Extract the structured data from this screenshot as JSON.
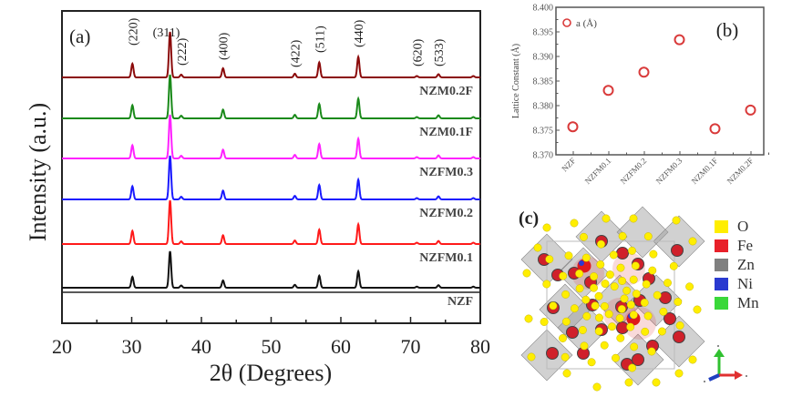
{
  "chart_data": [
    {
      "panel": "(a)",
      "type": "line",
      "title": "",
      "xlabel": "2θ (Degrees)",
      "ylabel": "Intensity (a.u.)",
      "xlim": [
        20,
        80
      ],
      "xticks": [
        20,
        30,
        40,
        50,
        60,
        70,
        80
      ],
      "grid": false,
      "peak_labels": [
        {
          "hkl": "(220)",
          "x": 30.1
        },
        {
          "hkl": "(311)",
          "x": 35.5
        },
        {
          "hkl": "(222)",
          "x": 37.1
        },
        {
          "hkl": "(400)",
          "x": 43.1
        },
        {
          "hkl": "(422)",
          "x": 53.4
        },
        {
          "hkl": "(511)",
          "x": 56.9
        },
        {
          "hkl": "(440)",
          "x": 62.5
        },
        {
          "hkl": "(620)",
          "x": 70.9
        },
        {
          "hkl": "(533)",
          "x": 74.0
        }
      ],
      "peaks_2theta": [
        30.1,
        35.5,
        37.1,
        43.1,
        53.4,
        56.9,
        62.5,
        70.9,
        74.0,
        79.0
      ],
      "relative_intensity": [
        0.3,
        1.0,
        0.06,
        0.2,
        0.08,
        0.33,
        0.45,
        0.03,
        0.07,
        0.03
      ],
      "series": [
        {
          "name": "NZM0.2F",
          "color": "#8b0a0a",
          "offset_rank": 5
        },
        {
          "name": "NZM0.1F",
          "color": "#1a8a1a",
          "offset_rank": 4
        },
        {
          "name": "NZFM0.3",
          "color": "#ff22ff",
          "offset_rank": 3
        },
        {
          "name": "NZFM0.2",
          "color": "#1a1aff",
          "offset_rank": 2
        },
        {
          "name": "NZFM0.1",
          "color": "#ff1a1a",
          "offset_rank": 1
        },
        {
          "name": "NZF",
          "color": "#111111",
          "offset_rank": 0
        }
      ]
    },
    {
      "panel": "(b)",
      "type": "scatter",
      "title": "",
      "xlabel": "",
      "ylabel": "Lattice Constant (Å)",
      "categories": [
        "NZF",
        "NZFM0.1",
        "NZFM0.2",
        "NZFM0.3",
        "NZM0.1F",
        "NZM0.2F"
      ],
      "series": [
        {
          "name": "a (Å)",
          "color": "#d93a3a",
          "values": [
            8.3757,
            8.3831,
            8.3868,
            8.3934,
            8.3753,
            8.3791
          ]
        }
      ],
      "ylim": [
        8.37,
        8.4
      ],
      "yticks": [
        "8.370",
        "8.375",
        "8.380",
        "8.385",
        "8.390",
        "8.395",
        "8.400"
      ],
      "legend_position": "top-left",
      "grid": false
    }
  ],
  "panel_c": {
    "label": "(c)",
    "description": "spinel crystal structure",
    "legend": [
      {
        "element": "O",
        "color": "#ffee00"
      },
      {
        "element": "Fe",
        "color": "#e8202a"
      },
      {
        "element": "Zn",
        "color": "#808080"
      },
      {
        "element": "Ni",
        "color": "#2a3ad0"
      },
      {
        "element": "Mn",
        "color": "#3ad83a"
      }
    ],
    "axes_colors": {
      "x": "#e03030",
      "y": "#30c030",
      "z": "#2040c0"
    }
  }
}
